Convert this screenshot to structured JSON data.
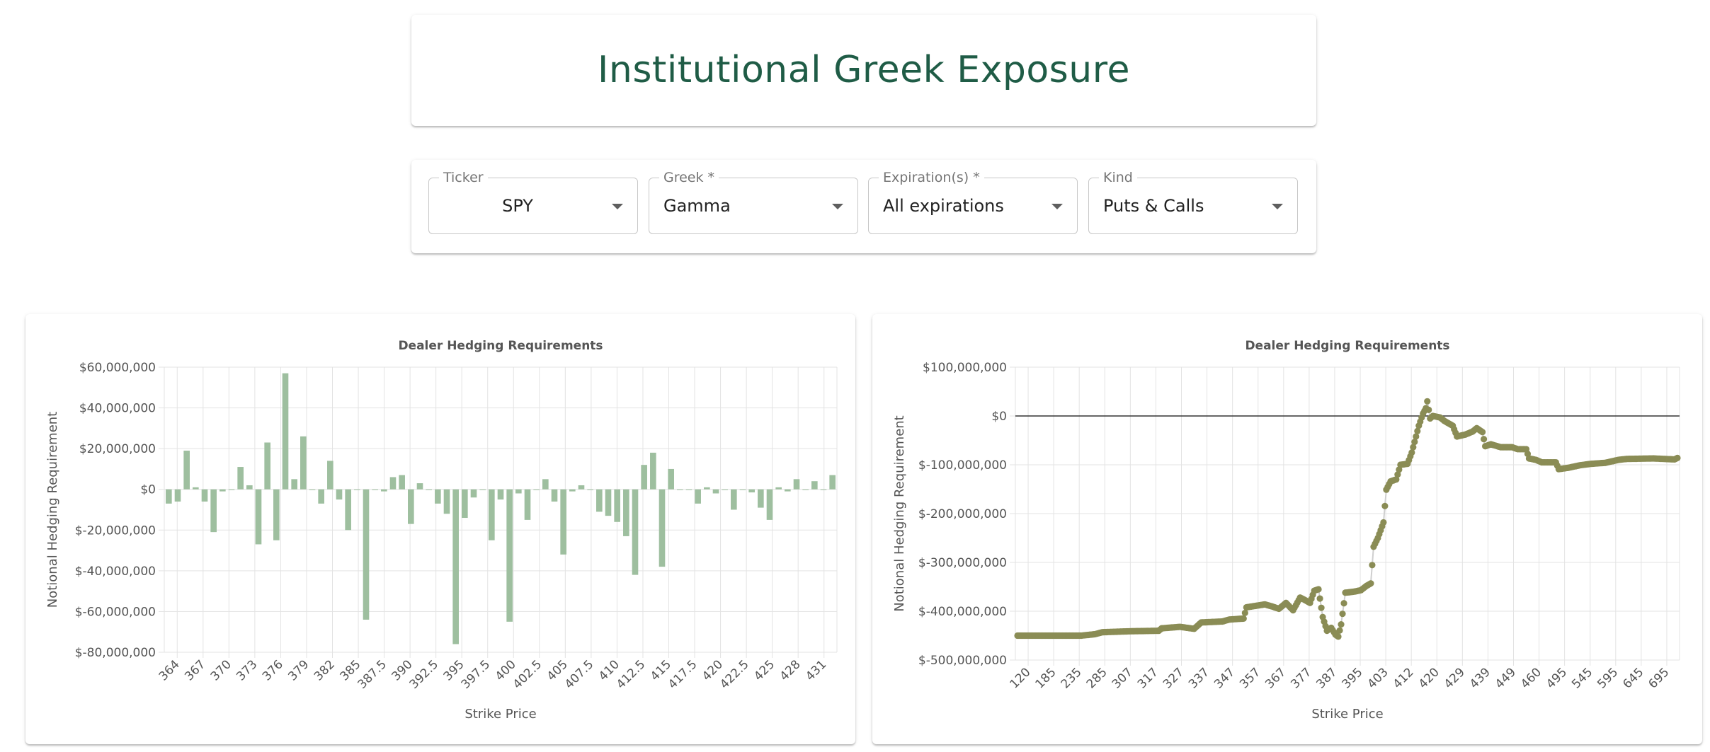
{
  "header": {
    "title": "Institutional Greek Exposure"
  },
  "colors": {
    "title": "#1f5c46",
    "bar": "#9ebf9f",
    "dot": "#8a8c55",
    "grid": "#e3e3e3"
  },
  "controls": [
    {
      "label": "Ticker",
      "value": "SPY",
      "icon": "chevron-down-icon"
    },
    {
      "label": "Greek *",
      "value": "Gamma",
      "icon": "chevron-down-icon"
    },
    {
      "label": "Expiration(s) *",
      "value": "All expirations",
      "icon": "chevron-down-icon"
    },
    {
      "label": "Kind",
      "value": "Puts & Calls",
      "icon": "chevron-down-icon"
    }
  ],
  "chart_data": [
    {
      "type": "bar",
      "title": "Dealer Hedging Requirements",
      "xlabel": "Strike Price",
      "ylabel": "Notional Hedging Requirement",
      "ylim": [
        -80000000,
        60000000
      ],
      "yticks": [
        60000000,
        40000000,
        20000000,
        0,
        -20000000,
        -40000000,
        -60000000,
        -80000000
      ],
      "ytick_labels": [
        "$60,000,000",
        "$40,000,000",
        "$20,000,000",
        "$0",
        "$-20,000,000",
        "$-40,000,000",
        "$-60,000,000",
        "$-80,000,000"
      ],
      "xtick_labels": [
        "364",
        "367",
        "370",
        "373",
        "376",
        "379",
        "382",
        "385",
        "387.5",
        "390",
        "392.5",
        "395",
        "397.5",
        "400",
        "402.5",
        "405",
        "407.5",
        "410",
        "412.5",
        "415",
        "417.5",
        "420",
        "422.5",
        "425",
        "428",
        "431"
      ],
      "grid": true,
      "values": [
        -7000000,
        -6000000,
        19000000,
        1000000,
        -6000000,
        -21000000,
        -1000000,
        0,
        11000000,
        2000000,
        -27000000,
        23000000,
        -25000000,
        57000000,
        5000000,
        26000000,
        0,
        -7000000,
        14000000,
        -5000000,
        -20000000,
        0,
        -64000000,
        0,
        -1000000,
        6000000,
        7000000,
        -17000000,
        3000000,
        0,
        -7000000,
        -12000000,
        -76000000,
        -14000000,
        -4000000,
        0,
        -25000000,
        -5000000,
        -65000000,
        -2000000,
        -15000000,
        0,
        5000000,
        -6000000,
        -32000000,
        -1000000,
        2000000,
        0,
        -11000000,
        -13000000,
        -16000000,
        -23000000,
        -42000000,
        12000000,
        18000000,
        -38000000,
        10000000,
        0,
        0,
        -7000000,
        1000000,
        -2000000,
        0,
        -10000000,
        0,
        -1500000,
        -9000000,
        -15000000,
        1000000,
        -1000000,
        5000000,
        0,
        4000000,
        0,
        7000000
      ]
    },
    {
      "type": "scatter",
      "title": "Dealer Hedging Requirements",
      "xlabel": "Strike Price",
      "ylabel": "Notional Hedging Requirement",
      "ylim": [
        -500000000,
        100000000
      ],
      "yticks": [
        100000000,
        0,
        -100000000,
        -200000000,
        -300000000,
        -400000000,
        -500000000
      ],
      "ytick_labels": [
        "$100,000,000",
        "$0",
        "$-100,000,000",
        "$-200,000,000",
        "$-300,000,000",
        "$-400,000,000",
        "$-500,000,000"
      ],
      "xtick_labels": [
        "120",
        "185",
        "235",
        "285",
        "307",
        "317",
        "327",
        "337",
        "347",
        "357",
        "367",
        "377",
        "387",
        "395",
        "403",
        "412",
        "420",
        "429",
        "439",
        "449",
        "460",
        "495",
        "545",
        "595",
        "645",
        "695"
      ],
      "grid": true,
      "zero_line": true,
      "y_anchors": [
        [
          0,
          -450000000
        ],
        [
          45,
          -450000000
        ],
        [
          55,
          -447000000
        ],
        [
          60,
          -443000000
        ],
        [
          80,
          -441000000
        ],
        [
          100,
          -440000000
        ],
        [
          102,
          -435000000
        ],
        [
          115,
          -432000000
        ],
        [
          125,
          -436000000
        ],
        [
          130,
          -423000000
        ],
        [
          145,
          -421000000
        ],
        [
          150,
          -417000000
        ],
        [
          160,
          -415000000
        ],
        [
          162,
          -392000000
        ],
        [
          175,
          -386000000
        ],
        [
          180,
          -390000000
        ],
        [
          185,
          -395000000
        ],
        [
          190,
          -383000000
        ],
        [
          195,
          -398000000
        ],
        [
          200,
          -372000000
        ],
        [
          204,
          -378000000
        ],
        [
          207,
          -383000000
        ],
        [
          210,
          -358000000
        ],
        [
          213,
          -355000000
        ],
        [
          216,
          -412000000
        ],
        [
          219,
          -440000000
        ],
        [
          222,
          -434000000
        ],
        [
          225,
          -448000000
        ],
        [
          227,
          -452000000
        ],
        [
          229,
          -427000000
        ],
        [
          232,
          -362000000
        ],
        [
          238,
          -360000000
        ],
        [
          243,
          -357000000
        ],
        [
          247,
          -348000000
        ],
        [
          250,
          -343000000
        ],
        [
          252,
          -268000000
        ],
        [
          255,
          -250000000
        ],
        [
          259,
          -218000000
        ],
        [
          261,
          -151000000
        ],
        [
          264,
          -134000000
        ],
        [
          268,
          -130000000
        ],
        [
          271,
          -100000000
        ],
        [
          276,
          -98000000
        ],
        [
          279,
          -75000000
        ],
        [
          282,
          -42000000
        ],
        [
          284,
          -20000000
        ],
        [
          287,
          5000000
        ],
        [
          289,
          16000000
        ],
        [
          290,
          30000000
        ],
        [
          292,
          -5000000
        ],
        [
          294,
          0
        ],
        [
          299,
          -3000000
        ],
        [
          302,
          -10000000
        ],
        [
          308,
          -20000000
        ],
        [
          311,
          -42000000
        ],
        [
          317,
          -38000000
        ],
        [
          322,
          -32000000
        ],
        [
          325,
          -25000000
        ],
        [
          329,
          -33000000
        ],
        [
          331,
          -62000000
        ],
        [
          335,
          -58000000
        ],
        [
          342,
          -64000000
        ],
        [
          350,
          -64000000
        ],
        [
          354,
          -68000000
        ],
        [
          360,
          -68000000
        ],
        [
          362,
          -87000000
        ],
        [
          367,
          -90000000
        ],
        [
          371,
          -95000000
        ],
        [
          381,
          -95000000
        ],
        [
          383,
          -109000000
        ],
        [
          390,
          -106000000
        ],
        [
          398,
          -101000000
        ],
        [
          406,
          -98000000
        ],
        [
          416,
          -96000000
        ],
        [
          425,
          -90000000
        ],
        [
          431,
          -88000000
        ],
        [
          450,
          -87000000
        ],
        [
          465,
          -89000000
        ],
        [
          467,
          -86000000
        ]
      ]
    }
  ]
}
